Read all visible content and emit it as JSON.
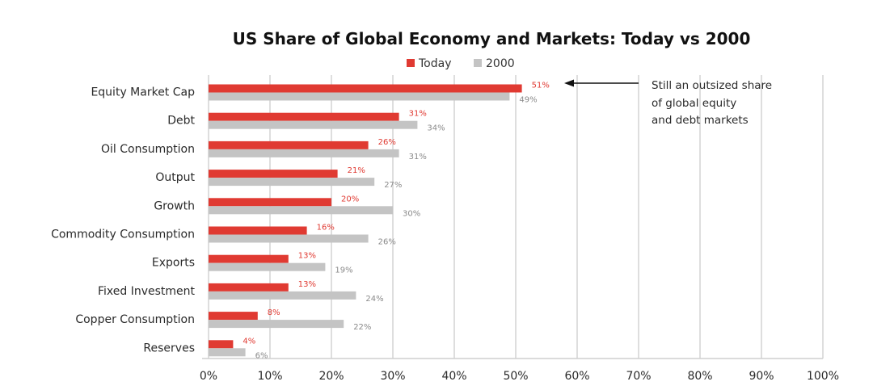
{
  "chart_data": {
    "type": "bar",
    "orientation": "horizontal",
    "title": "US Share of Global Economy and Markets: Today vs 2000",
    "categories": [
      "Equity Market Cap",
      "Debt",
      "Oil Consumption",
      "Output",
      "Growth",
      "Commodity Consumption",
      "Exports",
      "Fixed Investment",
      "Copper Consumption",
      "Reserves"
    ],
    "series": [
      {
        "name": "Today",
        "color": "#e03a32",
        "values": [
          51,
          31,
          26,
          21,
          20,
          16,
          13,
          13,
          8,
          4
        ],
        "labels": [
          "51%",
          "31%",
          "26%",
          "21%",
          "20%",
          "16%",
          "13%",
          "13%",
          "8%",
          "4%"
        ]
      },
      {
        "name": "2000",
        "color": "#c4c4c4",
        "values": [
          49,
          34,
          31,
          27,
          30,
          26,
          19,
          24,
          22,
          6
        ],
        "labels": [
          "49%",
          "34%",
          "31%",
          "27%",
          "30%",
          "26%",
          "19%",
          "24%",
          "22%",
          "6%"
        ]
      }
    ],
    "xlim": [
      0,
      100
    ],
    "xticks": [
      "0%",
      "10%",
      "20%",
      "30%",
      "40%",
      "50%",
      "60%",
      "70%",
      "80%",
      "90%",
      "100%"
    ],
    "grid": true,
    "legend_position": "top-center",
    "annotation": {
      "lines": [
        "Still an outsized share",
        "of global equity",
        "and debt markets"
      ],
      "target_category": "Equity Market Cap"
    }
  }
}
